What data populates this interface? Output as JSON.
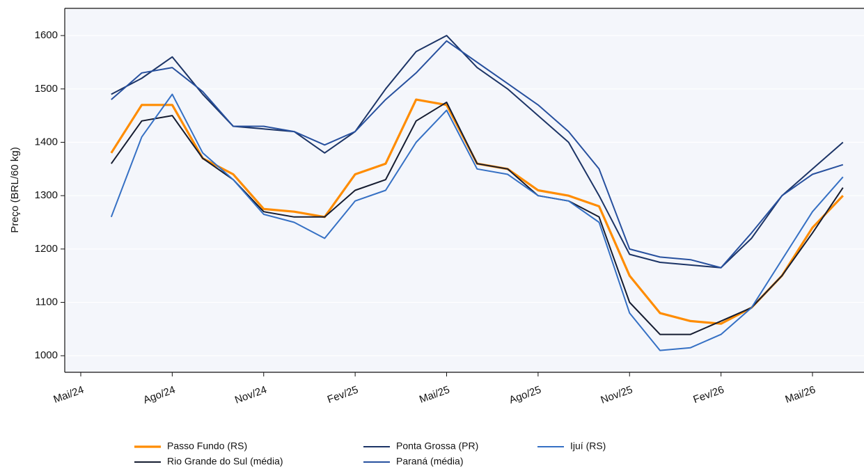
{
  "chart_data": {
    "type": "line",
    "y_label": "Preço (BRL/60 kg)",
    "x": [
      "2024-06",
      "2024-07",
      "2024-08",
      "2024-09",
      "2024-10",
      "2024-11",
      "2024-12",
      "2025-01",
      "2025-02",
      "2025-03",
      "2025-04",
      "2025-05",
      "2025-06",
      "2025-07",
      "2025-08",
      "2025-09",
      "2025-10",
      "2025-11",
      "2025-12",
      "2026-01",
      "2026-02",
      "2026-03",
      "2026-04",
      "2026-05",
      "2026-06"
    ],
    "xticks": [
      {
        "value": "2024-05",
        "label": "Mai/24"
      },
      {
        "value": "2024-08",
        "label": "Ago/24"
      },
      {
        "value": "2024-11",
        "label": "Nov/24"
      },
      {
        "value": "2025-02",
        "label": "Fev/25"
      },
      {
        "value": "2025-05",
        "label": "Mai/25"
      },
      {
        "value": "2025-08",
        "label": "Ago/25"
      },
      {
        "value": "2025-11",
        "label": "Nov/25"
      },
      {
        "value": "2026-02",
        "label": "Fev/26"
      },
      {
        "value": "2026-05",
        "label": "Mai/26"
      }
    ],
    "ylim": [
      969,
      1651
    ],
    "yticks": [
      1000,
      1100,
      1200,
      1300,
      1400,
      1500,
      1600
    ],
    "grid": true,
    "legend": "bottom",
    "series": [
      {
        "name": "Passo Fundo (RS)",
        "color": "#ff8c00",
        "values": [
          1380,
          1470,
          1470,
          1370,
          1340,
          1275,
          1270,
          1260,
          1340,
          1360,
          1480,
          1470,
          1360,
          1350,
          1310,
          1300,
          1280,
          1150,
          1080,
          1065,
          1060,
          1090,
          1150,
          1240,
          1300
        ]
      },
      {
        "name": "Rio Grande do Sul (média)",
        "color": "#151c30",
        "values": [
          1360,
          1440,
          1450,
          1370,
          1330,
          1270,
          1260,
          1260,
          1310,
          1330,
          1440,
          1475,
          1360,
          1350,
          1300,
          1290,
          1260,
          1100,
          1040,
          1040,
          1065,
          1090,
          1150,
          1230,
          1315
        ]
      },
      {
        "name": "Ponta Grossa (PR)",
        "color": "#1c3466",
        "values": [
          1490,
          1520,
          1560,
          1490,
          1430,
          1425,
          1420,
          1380,
          1420,
          1500,
          1570,
          1600,
          1540,
          1500,
          1450,
          1400,
          1300,
          1190,
          1175,
          1170,
          1165,
          1220,
          1300,
          1350,
          1400
        ]
      },
      {
        "name": "Paraná (média)",
        "color": "#27509e",
        "values": [
          1480,
          1530,
          1540,
          1495,
          1430,
          1430,
          1420,
          1395,
          1420,
          1480,
          1530,
          1590,
          1550,
          1510,
          1470,
          1420,
          1350,
          1200,
          1185,
          1180,
          1165,
          1230,
          1300,
          1340,
          1358
        ]
      },
      {
        "name": "Ijuí (RS)",
        "color": "#3570c4",
        "values": [
          1260,
          1410,
          1490,
          1380,
          1330,
          1265,
          1250,
          1220,
          1290,
          1310,
          1400,
          1460,
          1350,
          1340,
          1300,
          1290,
          1250,
          1080,
          1010,
          1015,
          1040,
          1090,
          1180,
          1270,
          1335
        ]
      }
    ]
  }
}
